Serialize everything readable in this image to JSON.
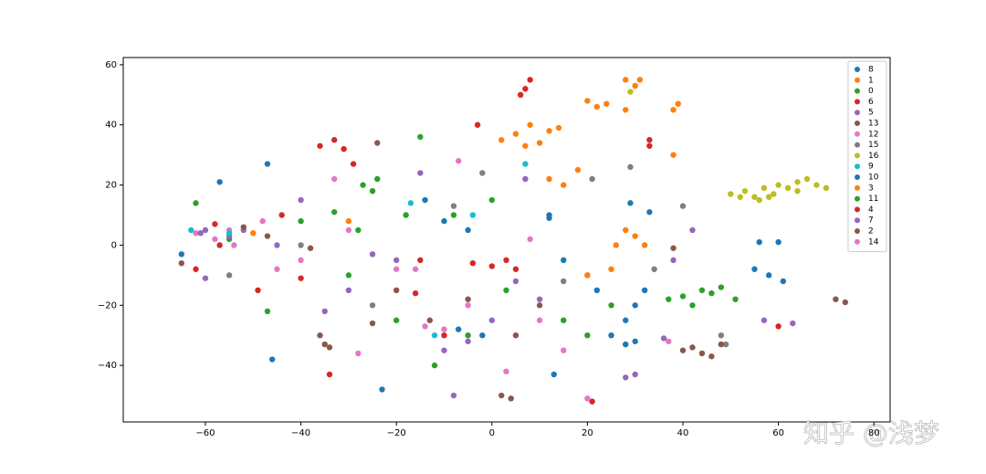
{
  "chart_data": {
    "type": "scatter",
    "watermark": "知乎 @浅梦",
    "xlim": [
      -77.2,
      83.4
    ],
    "ylim": [
      -58.8,
      62.4
    ],
    "xticks": [
      {
        "value": -60,
        "label": "−60"
      },
      {
        "value": -40,
        "label": "−40"
      },
      {
        "value": -20,
        "label": "−20"
      },
      0,
      20,
      40,
      60,
      80
    ],
    "yticks": [
      {
        "value": -40,
        "label": "−40"
      },
      {
        "value": -20,
        "label": "−20"
      },
      0,
      20,
      40,
      60
    ],
    "legend": "upper right",
    "series": [
      {
        "name": "8",
        "color": "#1f77b4",
        "x": [
          -65,
          -46,
          -23,
          13,
          -5,
          -10,
          -14,
          30,
          28,
          32,
          -47,
          -57,
          12,
          15
        ],
        "y": [
          -3,
          -38,
          -48,
          -43,
          5,
          8,
          15,
          -20,
          -25,
          -15,
          27,
          21,
          9,
          -5
        ]
      },
      {
        "name": "1",
        "color": "#ff7f0e",
        "x": [
          2,
          5,
          8,
          12,
          14,
          10,
          7,
          20,
          24,
          28,
          30,
          28,
          31,
          22
        ],
        "y": [
          35,
          37,
          40,
          38,
          39,
          34,
          33,
          48,
          47,
          45,
          53,
          55,
          55,
          46
        ]
      },
      {
        "name": "0",
        "color": "#2ca02c",
        "x": [
          -25,
          -27,
          -24,
          -15,
          -20,
          -12,
          -5,
          -55,
          -40,
          -62,
          -47,
          20,
          25,
          3
        ],
        "y": [
          18,
          20,
          22,
          36,
          -25,
          -40,
          -30,
          2,
          8,
          14,
          -22,
          -30,
          -20,
          -15
        ]
      },
      {
        "name": "6",
        "color": "#d62728",
        "x": [
          6,
          7,
          8,
          -36,
          -31,
          -33,
          -29,
          -4,
          0,
          3,
          5,
          -34,
          21,
          33
        ],
        "y": [
          50,
          52,
          55,
          33,
          32,
          35,
          27,
          -6,
          -7,
          -5,
          -8,
          -43,
          -52,
          35
        ]
      },
      {
        "name": "5",
        "color": "#9467bd",
        "x": [
          -55,
          -52,
          -60,
          -45,
          -35,
          -10,
          -5,
          0,
          -20,
          10,
          20,
          28,
          30,
          36
        ],
        "y": [
          3,
          5,
          5,
          0,
          -22,
          -35,
          -32,
          -25,
          -5,
          -18,
          -10,
          -44,
          -43,
          -31
        ]
      },
      {
        "name": "13",
        "color": "#8c564b",
        "x": [
          -36,
          -35,
          -34,
          2,
          4,
          40,
          42,
          44,
          46,
          72,
          74,
          -24,
          -25
        ],
        "y": [
          -30,
          -33,
          -34,
          -50,
          -51,
          -35,
          -34,
          -36,
          -37,
          -18,
          -19,
          34,
          -26
        ]
      },
      {
        "name": "12",
        "color": "#e377c2",
        "x": [
          -55,
          -48,
          -20,
          -30,
          -10,
          3,
          10,
          -62,
          -16,
          37,
          -33,
          -45
        ],
        "y": [
          5,
          8,
          -8,
          5,
          -28,
          -42,
          -25,
          4,
          -8,
          -32,
          22,
          -8
        ]
      },
      {
        "name": "15",
        "color": "#7f7f7f",
        "x": [
          -40,
          -25,
          -8,
          -2,
          15,
          21,
          29,
          34,
          48,
          49,
          40,
          -55
        ],
        "y": [
          0,
          -20,
          13,
          24,
          -12,
          22,
          26,
          -8,
          -30,
          -33,
          13,
          -10
        ]
      },
      {
        "name": "16",
        "color": "#bcbd22",
        "x": [
          50,
          53,
          55,
          57,
          59,
          60,
          62,
          64,
          66,
          68,
          70,
          56,
          58,
          64,
          29,
          52
        ],
        "y": [
          17,
          18,
          16,
          19,
          17,
          20,
          19,
          21,
          22,
          20,
          19,
          15,
          16,
          18,
          51,
          16
        ]
      },
      {
        "name": "9",
        "color": "#17becf",
        "x": [
          -63,
          -17,
          -4,
          7,
          -55,
          -12
        ],
        "y": [
          5,
          14,
          10,
          27,
          4,
          -30
        ]
      },
      {
        "name": "10",
        "color": "#1f77b4",
        "x": [
          56,
          60,
          55,
          58,
          61,
          28,
          30,
          25,
          12,
          29,
          33,
          22,
          -7,
          -2
        ],
        "y": [
          1,
          1,
          -8,
          -10,
          -12,
          -33,
          -32,
          -30,
          10,
          14,
          11,
          -15,
          -28,
          -30
        ]
      },
      {
        "name": "3",
        "color": "#ff7f0e",
        "x": [
          38,
          39,
          26,
          28,
          30,
          32,
          15,
          18,
          12,
          20,
          25,
          -50,
          -30,
          38
        ],
        "y": [
          45,
          47,
          0,
          5,
          3,
          0,
          20,
          25,
          22,
          -10,
          -8,
          4,
          8,
          30
        ]
      },
      {
        "name": "11",
        "color": "#2ca02c",
        "x": [
          37,
          40,
          44,
          46,
          48,
          51,
          42,
          -28,
          -33,
          -8,
          -30,
          0,
          -18,
          15
        ],
        "y": [
          -18,
          -17,
          -15,
          -16,
          -14,
          -18,
          -20,
          5,
          11,
          10,
          -10,
          15,
          10,
          -25
        ]
      },
      {
        "name": "4",
        "color": "#d62728",
        "x": [
          -58,
          -62,
          -40,
          -49,
          -10,
          -15,
          -3,
          -16,
          60,
          -57,
          -44,
          33
        ],
        "y": [
          7,
          -8,
          -11,
          -15,
          -30,
          -5,
          40,
          -16,
          -27,
          0,
          10,
          33
        ]
      },
      {
        "name": "7",
        "color": "#9467bd",
        "x": [
          -61,
          -40,
          -30,
          -15,
          -8,
          5,
          7,
          38,
          42,
          -25,
          -60,
          63,
          57
        ],
        "y": [
          4,
          15,
          -15,
          24,
          -50,
          -12,
          22,
          -5,
          5,
          -3,
          -11,
          -26,
          -25
        ]
      },
      {
        "name": "2",
        "color": "#8c564b",
        "x": [
          -52,
          -47,
          -65,
          -20,
          5,
          10,
          48,
          -38,
          -13,
          -5,
          38
        ],
        "y": [
          6,
          3,
          -6,
          -15,
          -30,
          -20,
          -33,
          -1,
          -25,
          -18,
          -1
        ]
      },
      {
        "name": "14",
        "color": "#e377c2",
        "x": [
          -58,
          -54,
          -28,
          -5,
          -14,
          15,
          -40,
          -7,
          8,
          20
        ],
        "y": [
          2,
          0,
          -36,
          -20,
          -27,
          -35,
          -5,
          28,
          2,
          -51
        ]
      }
    ]
  }
}
